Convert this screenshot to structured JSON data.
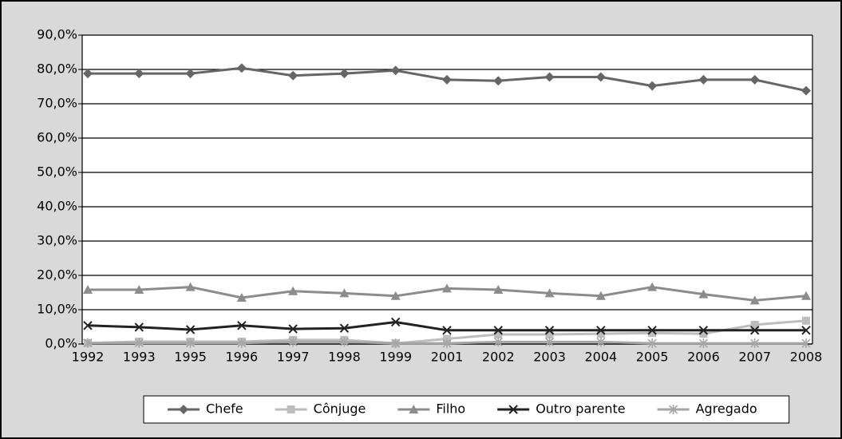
{
  "chart_data": {
    "type": "line",
    "categories": [
      "1992",
      "1993",
      "1995",
      "1996",
      "1997",
      "1998",
      "1999",
      "2001",
      "2002",
      "2003",
      "2004",
      "2005",
      "2006",
      "2007",
      "2008"
    ],
    "series": [
      {
        "name": "Chefe",
        "color": "#666666",
        "marker": "diamond",
        "values": [
          78.8,
          78.8,
          78.8,
          80.4,
          78.2,
          78.8,
          79.7,
          77.0,
          76.7,
          77.8,
          77.8,
          75.2,
          77.0,
          77.0,
          73.8
        ]
      },
      {
        "name": "Cônjuge",
        "color": "#bdbdbd",
        "marker": "square",
        "values": [
          0.3,
          0.7,
          0.7,
          0.7,
          1.2,
          1.2,
          0.2,
          1.5,
          2.8,
          2.8,
          3.0,
          3.2,
          3.0,
          5.6,
          6.8
        ]
      },
      {
        "name": "Filho",
        "color": "#8c8c8c",
        "marker": "triangle",
        "values": [
          15.8,
          15.8,
          16.6,
          13.5,
          15.4,
          14.8,
          14.0,
          16.2,
          15.8,
          14.8,
          14.0,
          16.6,
          14.5,
          12.7,
          14.0
        ]
      },
      {
        "name": "Outro parente",
        "color": "#222222",
        "marker": "x",
        "values": [
          5.4,
          4.9,
          4.2,
          5.4,
          4.4,
          4.6,
          6.4,
          4.0,
          4.0,
          4.0,
          4.0,
          4.0,
          4.0,
          4.0,
          4.0
        ]
      },
      {
        "name": "Agregado",
        "color": "#a6a6a6",
        "marker": "star",
        "values": [
          0.3,
          0.3,
          0.3,
          0.3,
          0.6,
          0.6,
          0.2,
          0.2,
          0.6,
          0.6,
          0.6,
          0.2,
          0.2,
          0.2,
          0.2
        ]
      }
    ],
    "ylim": [
      0,
      90
    ],
    "yticks": [
      {
        "value": 0,
        "label": "0,0%"
      },
      {
        "value": 10,
        "label": "10,0%"
      },
      {
        "value": 20,
        "label": "20,0%"
      },
      {
        "value": 30,
        "label": "30,0%"
      },
      {
        "value": 40,
        "label": "40,0%"
      },
      {
        "value": 50,
        "label": "50,0%"
      },
      {
        "value": 60,
        "label": "60,0%"
      },
      {
        "value": 70,
        "label": "70,0%"
      },
      {
        "value": 80,
        "label": "80,0%"
      },
      {
        "value": 90,
        "label": "90,0%"
      }
    ],
    "grid": true,
    "legend": "bottom"
  }
}
